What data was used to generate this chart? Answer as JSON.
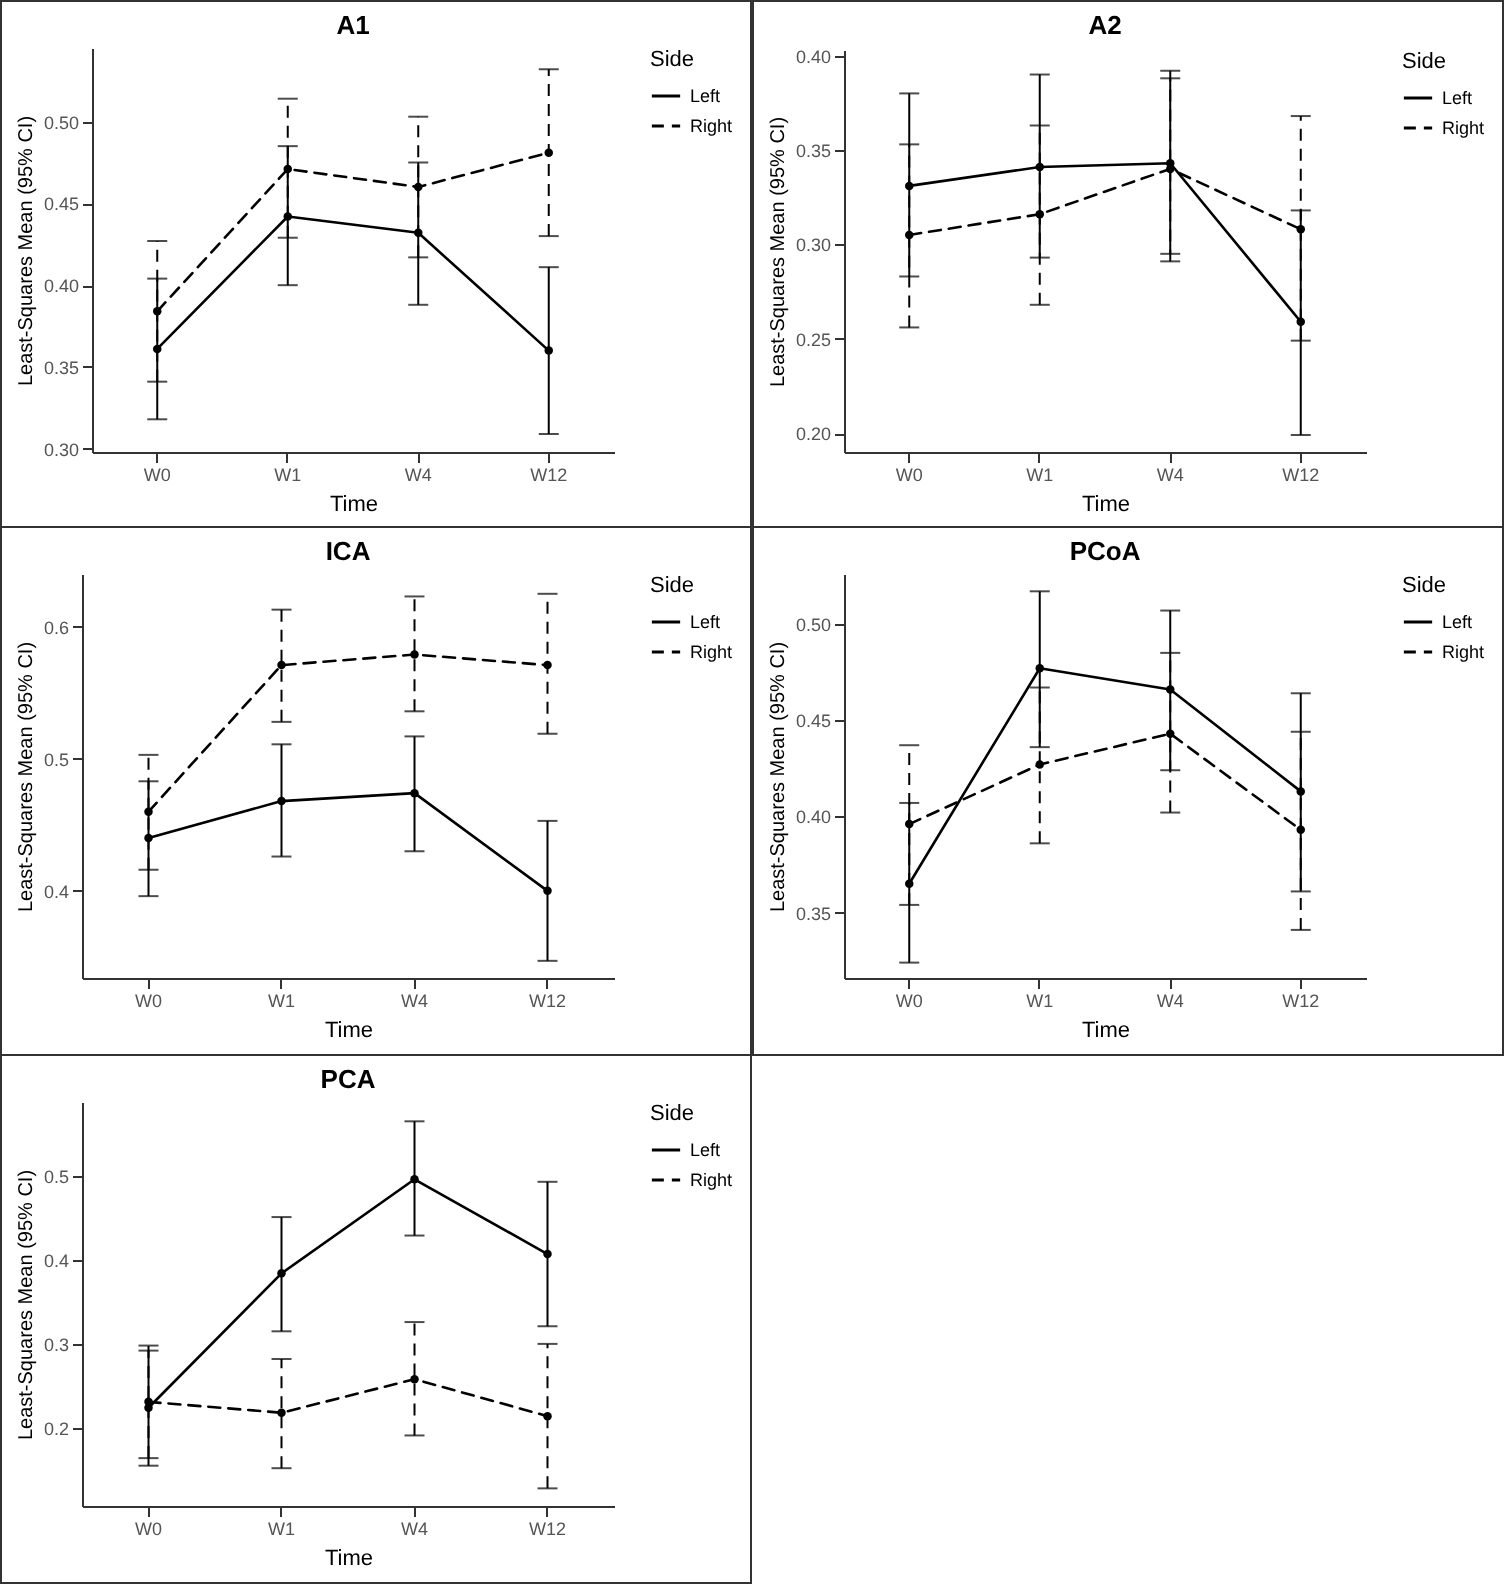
{
  "chart_data": [
    {
      "type": "line",
      "title": "A1",
      "xlabel": "Time",
      "ylabel": "Least-Squares Mean (95% CI)",
      "legend_title": "Side",
      "legend": "right",
      "grid": false,
      "marker": "circle",
      "categories": [
        "W0",
        "W1",
        "W4",
        "W12"
      ],
      "ylim": [
        0.298,
        0.545
      ],
      "yticks": [
        {
          "value": 0.3,
          "label": "0.30"
        },
        {
          "value": 0.35,
          "label": "0.35"
        },
        {
          "value": 0.4,
          "label": "0.40"
        },
        {
          "value": 0.45,
          "label": "0.45"
        },
        {
          "value": 0.5,
          "label": "0.50"
        }
      ],
      "series": [
        {
          "name": "Left",
          "color": "#000000",
          "line_style": "solid",
          "values": [
            0.361,
            0.442,
            0.432,
            0.36
          ],
          "errors": [
            [
              0.318,
              0.404
            ],
            [
              0.4,
              0.485
            ],
            [
              0.388,
              0.475
            ],
            [
              0.309,
              0.411
            ]
          ]
        },
        {
          "name": "Right",
          "color": "#000000",
          "line_style": "dashed",
          "values": [
            0.384,
            0.471,
            0.46,
            0.481
          ],
          "errors": [
            [
              0.341,
              0.427
            ],
            [
              0.429,
              0.514
            ],
            [
              0.417,
              0.503
            ],
            [
              0.43,
              0.532
            ]
          ]
        }
      ]
    },
    {
      "type": "line",
      "title": "A2",
      "xlabel": "Time",
      "ylabel": "Least-Squares Mean (95% CI)",
      "legend_title": "Side",
      "legend": "right",
      "grid": false,
      "marker": "circle",
      "categories": [
        "W0",
        "W1",
        "W4",
        "W12"
      ],
      "ylim": [
        0.19,
        0.403
      ],
      "yticks": [
        {
          "value": 0.2,
          "label": "0.20"
        },
        {
          "value": 0.25,
          "label": "0.25"
        },
        {
          "value": 0.3,
          "label": "0.30"
        },
        {
          "value": 0.35,
          "label": "0.35"
        },
        {
          "value": 0.4,
          "label": "0.40"
        }
      ],
      "series": [
        {
          "name": "Left",
          "color": "#000000",
          "line_style": "solid",
          "values": [
            0.331,
            0.341,
            0.343,
            0.259
          ],
          "errors": [
            [
              0.283,
              0.38
            ],
            [
              0.293,
              0.39
            ],
            [
              0.295,
              0.392
            ],
            [
              0.199,
              0.318
            ]
          ]
        },
        {
          "name": "Right",
          "color": "#000000",
          "line_style": "dashed",
          "values": [
            0.305,
            0.316,
            0.34,
            0.308
          ],
          "errors": [
            [
              0.256,
              0.353
            ],
            [
              0.268,
              0.363
            ],
            [
              0.291,
              0.388
            ],
            [
              0.249,
              0.368
            ]
          ]
        }
      ]
    },
    {
      "type": "line",
      "title": "ICA",
      "xlabel": "Time",
      "ylabel": "Least-Squares Mean (95% CI)",
      "legend_title": "Side",
      "legend": "right",
      "grid": false,
      "marker": "circle",
      "categories": [
        "W0",
        "W1",
        "W4",
        "W12"
      ],
      "ylim": [
        0.334,
        0.64
      ],
      "yticks": [
        0.4,
        0.5,
        0.6
      ],
      "series": [
        {
          "name": "Left",
          "color": "#000000",
          "line_style": "solid",
          "values": [
            0.44,
            0.468,
            0.474,
            0.4
          ],
          "errors": [
            [
              0.396,
              0.483
            ],
            [
              0.426,
              0.511
            ],
            [
              0.43,
              0.517
            ],
            [
              0.347,
              0.453
            ]
          ]
        },
        {
          "name": "Right",
          "color": "#000000",
          "line_style": "dashed",
          "values": [
            0.46,
            0.571,
            0.579,
            0.571
          ],
          "errors": [
            [
              0.416,
              0.503
            ],
            [
              0.528,
              0.613
            ],
            [
              0.536,
              0.623
            ],
            [
              0.519,
              0.625
            ]
          ]
        }
      ]
    },
    {
      "type": "line",
      "title": "PCoA",
      "xlabel": "Time",
      "ylabel": "Least-Squares Mean (95% CI)",
      "legend_title": "Side",
      "legend": "right",
      "grid": false,
      "marker": "circle",
      "categories": [
        "W0",
        "W1",
        "W4",
        "W12"
      ],
      "ylim": [
        0.316,
        0.526
      ],
      "yticks": [
        {
          "value": 0.35,
          "label": "0.35"
        },
        {
          "value": 0.4,
          "label": "0.40"
        },
        {
          "value": 0.45,
          "label": "0.45"
        },
        {
          "value": 0.5,
          "label": "0.50"
        }
      ],
      "series": [
        {
          "name": "Left",
          "color": "#000000",
          "line_style": "solid",
          "values": [
            0.365,
            0.477,
            0.466,
            0.413
          ],
          "errors": [
            [
              0.324,
              0.407
            ],
            [
              0.436,
              0.517
            ],
            [
              0.424,
              0.507
            ],
            [
              0.361,
              0.464
            ]
          ]
        },
        {
          "name": "Right",
          "color": "#000000",
          "line_style": "dashed",
          "values": [
            0.396,
            0.427,
            0.443,
            0.393
          ],
          "errors": [
            [
              0.354,
              0.437
            ],
            [
              0.386,
              0.467
            ],
            [
              0.402,
              0.485
            ],
            [
              0.341,
              0.444
            ]
          ]
        }
      ]
    },
    {
      "type": "line",
      "title": "PCA",
      "xlabel": "Time",
      "ylabel": "Least-Squares Mean (95% CI)",
      "legend_title": "Side",
      "legend": "right",
      "grid": false,
      "marker": "circle",
      "categories": [
        "W0",
        "W1",
        "W4",
        "W12"
      ],
      "ylim": [
        0.107,
        0.588
      ],
      "yticks": [
        0.2,
        0.3,
        0.4,
        0.5
      ],
      "series": [
        {
          "name": "Left",
          "color": "#000000",
          "line_style": "solid",
          "values": [
            0.224,
            0.384,
            0.496,
            0.407
          ],
          "errors": [
            [
              0.155,
              0.292
            ],
            [
              0.315,
              0.451
            ],
            [
              0.429,
              0.565
            ],
            [
              0.321,
              0.493
            ]
          ]
        },
        {
          "name": "Right",
          "color": "#000000",
          "line_style": "dashed",
          "values": [
            0.231,
            0.218,
            0.258,
            0.214
          ],
          "errors": [
            [
              0.164,
              0.298
            ],
            [
              0.152,
              0.282
            ],
            [
              0.191,
              0.326
            ],
            [
              0.128,
              0.3
            ]
          ]
        }
      ]
    }
  ]
}
